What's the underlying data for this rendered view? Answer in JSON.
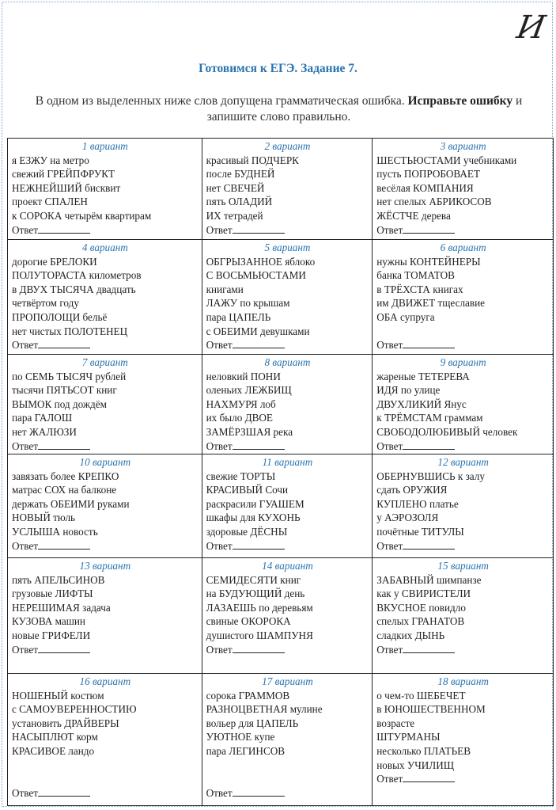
{
  "logo_text": "И",
  "title": "Готовимся к ЕГЭ. Задание 7.",
  "instruction": {
    "text_before": "В одном из выделенных ниже слов допущена грамматическая ошибка. ",
    "bold": "Исправьте ошибку",
    "text_after": " и запишите слово правильно."
  },
  "answer_label": "Ответ",
  "variants": [
    {
      "title": "1 вариант",
      "lines": [
        "я ЕЗЖУ на метро",
        "свежий ГРЕЙПФРУКТ",
        "НЕЖНЕЙШИЙ бисквит",
        "проект СПАЛЕН",
        "к СОРОКА четырём квартирам"
      ]
    },
    {
      "title": "2 вариант",
      "lines": [
        "красивый ПОДЧЕРК",
        "после БУДНЕЙ",
        "нет СВЕЧЕЙ",
        "пять ОЛАДИЙ",
        "ИХ тетрадей"
      ]
    },
    {
      "title": "3 вариант",
      "lines": [
        "ШЕСТЬЮСТАМИ учебниками",
        "пусть ПОПРОБОВАЕТ",
        "весёлая КОМПАНИЯ",
        "нет спелых АБРИКОСОВ",
        "ЖЁСТЧЕ дерева"
      ]
    },
    {
      "title": "4 вариант",
      "lines": [
        "дорогие БРЕЛОКИ",
        "ПОЛУТОРАСТА километров",
        "в ДВУХ ТЫСЯЧА двадцать",
        "четвёртом году",
        "ПРОПОЛОЩИ бельё",
        "нет чистых ПОЛОТЕНЕЦ"
      ]
    },
    {
      "title": "5 вариант",
      "lines": [
        "ОБГРЫЗАННОЕ яблоко",
        "С ВОСЬМЬЮСТАМИ",
        "книгами",
        "ЛАЖУ по крышам",
        "пара ЦАПЕЛЬ",
        "с ОБЕИМИ девушками"
      ]
    },
    {
      "title": "6 вариант",
      "lines": [
        "нужны КОНТЕЙНЕРЫ",
        "банка ТОМАТОВ",
        "в ТРЁХСТА книгах",
        "им ДВИЖЕТ тщеславие",
        "ОБА супруга"
      ]
    },
    {
      "title": "7 вариант",
      "lines": [
        "по СЕМЬ ТЫСЯЧ рублей",
        "тысячи ПЯТЬСОТ книг",
        "ВЫМОК под дождём",
        "пара ГАЛОШ",
        "нет ЖАЛЮЗИ"
      ]
    },
    {
      "title": "8 вариант",
      "lines": [
        "неловкий ПОНИ",
        "оленьих ЛЕЖБИЩ",
        "НАХМУРЯ лоб",
        "их было ДВОЕ",
        "ЗАМЁРЗШАЯ река"
      ]
    },
    {
      "title": "9 вариант",
      "lines": [
        "жареные ТЕТЕРЕВА",
        "ИДЯ по улице",
        "ДВУХЛИКИЙ Янус",
        "к ТРЁМСТАМ граммам",
        "СВОБОДОЛЮБИВЫЙ человек"
      ]
    },
    {
      "title": "10 вариант",
      "lines": [
        "завязать более КРЕПКО",
        "матрас СОХ на балконе",
        "держать ОБЕИМИ руками",
        "НОВЫЙ тюль",
        "УСЛЫША новость"
      ]
    },
    {
      "title": "11 вариант",
      "lines": [
        "свежие ТОРТЫ",
        "КРАСИВЫЙ Сочи",
        "раскрасили ГУАШЕМ",
        "шкафы для КУХОНЬ",
        "здоровые ДЁСНЫ"
      ]
    },
    {
      "title": "12 вариант",
      "lines": [
        "ОБЕРНУВШИСЬ к залу",
        "сдать ОРУЖИЯ",
        "КУПЛЕНО платье",
        "у АЭРОЗОЛЯ",
        "почётные ТИТУЛЫ"
      ]
    },
    {
      "title": "13 вариант",
      "lines": [
        "пять АПЕЛЬСИНОВ",
        "грузовые ЛИФТЫ",
        "НЕРЕШИМАЯ задача",
        "КУЗОВА машин",
        "новые ГРИФЕЛИ"
      ]
    },
    {
      "title": "14 вариант",
      "lines": [
        "СЕМИДЕСЯТИ книг",
        "на БУДУЮЩИЙ день",
        "ЛАЗАЕШЬ по деревьям",
        "свиные ОКОРОКА",
        "душистого ШАМПУНЯ"
      ]
    },
    {
      "title": "15 вариант",
      "lines": [
        "ЗАБАВНЫЙ шимпанзе",
        "как у СВИРИСТЕЛИ",
        "ВКУСНОЕ повидло",
        "спелых ГРАНАТОВ",
        "сладких ДЫНЬ"
      ]
    },
    {
      "title": "16 вариант",
      "lines": [
        "НОШЕНЫЙ костюм",
        "с САМОУВЕРЕННОСТИЮ",
        "установить ДРАЙВЕРЫ",
        "НАСЫПЛЮТ корм",
        "КРАСИВОЕ ландо"
      ]
    },
    {
      "title": "17 вариант",
      "lines": [
        "сорока ГРАММОВ",
        "РАЗНОЦВЕТНАЯ мулине",
        "вольер для ЦАПЕЛЬ",
        "УЮТНОЕ купе",
        "пара ЛЕГИНСОВ"
      ]
    },
    {
      "title": "18 вариант",
      "lines": [
        "о чем-то ШЕБЕЧЕТ",
        "в ЮНОШЕСТВЕННОМ",
        "возрасте",
        "ШТУРМАНЫ",
        "несколько ПЛАТЬЕВ",
        "новых УЧИЛИЩ"
      ]
    }
  ]
}
